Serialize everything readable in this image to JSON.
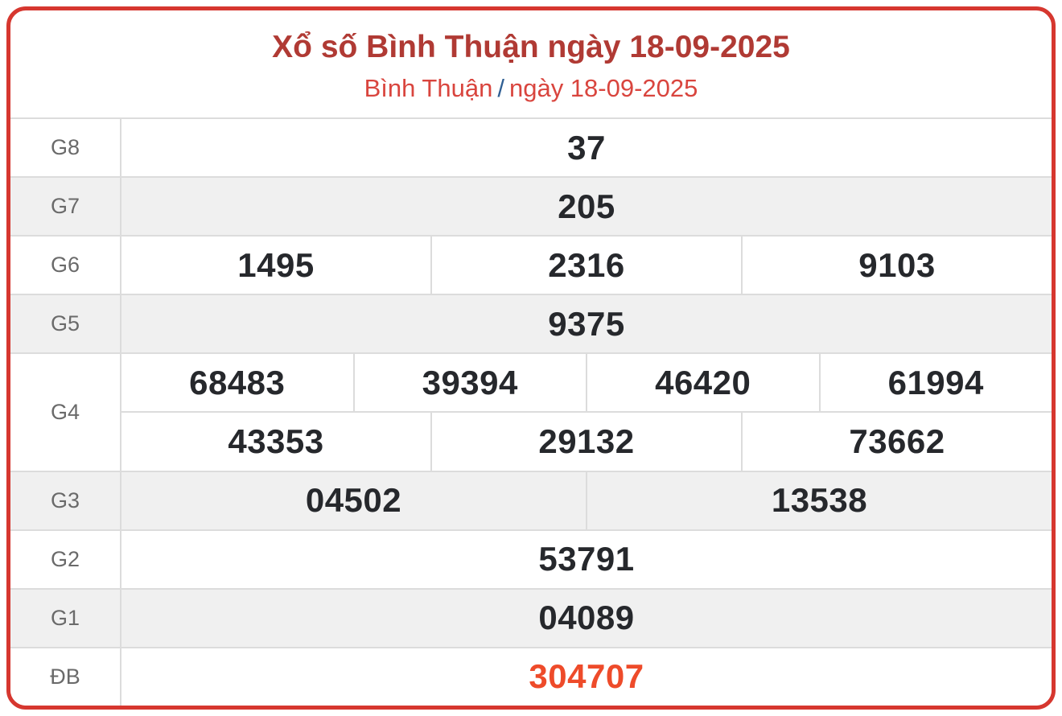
{
  "header": {
    "title": "Xổ số Bình Thuận ngày 18-09-2025",
    "subtitle_region": "Bình Thuận",
    "subtitle_separator": "/",
    "subtitle_date": "ngày 18-09-2025"
  },
  "colors": {
    "card_border": "#d6372f",
    "title": "#b03a34",
    "subtitle": "#d9453e",
    "separator": "#2f5f93",
    "number": "#26282c",
    "label": "#6a6a6a",
    "row_alt_bg": "#f0f0f0",
    "special_number": "#ee4b2a",
    "cell_border": "#dcdcdc"
  },
  "table": {
    "rows": [
      {
        "label": "G8",
        "lines": [
          [
            "37"
          ]
        ],
        "highlight": false
      },
      {
        "label": "G7",
        "lines": [
          [
            "205"
          ]
        ],
        "highlight": false
      },
      {
        "label": "G6",
        "lines": [
          [
            "1495",
            "2316",
            "9103"
          ]
        ],
        "highlight": false
      },
      {
        "label": "G5",
        "lines": [
          [
            "9375"
          ]
        ],
        "highlight": false
      },
      {
        "label": "G4",
        "lines": [
          [
            "68483",
            "39394",
            "46420",
            "61994"
          ],
          [
            "43353",
            "29132",
            "73662"
          ]
        ],
        "highlight": false
      },
      {
        "label": "G3",
        "lines": [
          [
            "04502",
            "13538"
          ]
        ],
        "highlight": false
      },
      {
        "label": "G2",
        "lines": [
          [
            "53791"
          ]
        ],
        "highlight": false
      },
      {
        "label": "G1",
        "lines": [
          [
            "04089"
          ]
        ],
        "highlight": false
      },
      {
        "label": "ĐB",
        "lines": [
          [
            "304707"
          ]
        ],
        "highlight": true
      }
    ]
  }
}
